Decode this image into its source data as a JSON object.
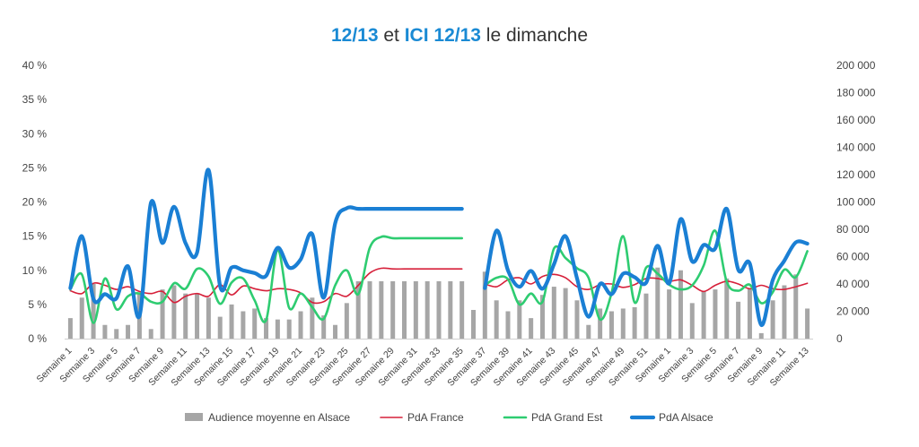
{
  "chart_data": {
    "type": "bar+line",
    "title": {
      "part1": "12/13",
      "part2": " et ",
      "part3": "ICI 12/13",
      "part4": " le dimanche"
    },
    "xlabel": "",
    "left_axis": {
      "ylim": [
        0,
        40
      ],
      "ticks": [
        "0 %",
        "5 %",
        "10 %",
        "15 %",
        "20 %",
        "25 %",
        "30 %",
        "35 %",
        "40 %"
      ]
    },
    "right_axis": {
      "ylim": [
        0,
        200000
      ],
      "ticks": [
        "0",
        "20 000",
        "40 000",
        "60 000",
        "80 000",
        "100 000",
        "120 000",
        "140 000",
        "160 000",
        "180 000",
        "200 000"
      ]
    },
    "categories_labeled": [
      "Semaine 1",
      "Semaine 3",
      "Semaine 5",
      "Semaine 7",
      "Semaine 9",
      "Semaine 11",
      "Semaine 13",
      "Semaine 15",
      "Semaine 17",
      "Semaine 19",
      "Semaine 21",
      "Semaine 23",
      "Semaine 25",
      "Semaine 27",
      "Semaine 29",
      "Semaine 31",
      "Semaine 33",
      "Semaine 35",
      "Semaine 37",
      "Semaine 39",
      "Semaine 41",
      "Semaine 43",
      "Semaine 45",
      "Semaine 47",
      "Semaine 49",
      "Semaine 51",
      "Semaine 1",
      "Semaine 3",
      "Semaine 5",
      "Semaine 7",
      "Semaine 9",
      "Semaine 11",
      "Semaine 13"
    ],
    "legend": [
      "Audience moyenne en Alsace",
      "PdA France",
      "PdA Grand Est",
      "PdA Alsace"
    ],
    "colors": {
      "audience": "#a6a6a6",
      "france": "#d6203a",
      "grand_est": "#2ecc71",
      "alsace": "#1a7fd4"
    },
    "series": [
      {
        "name": "Audience moyenne en Alsace",
        "axis": "right",
        "values": [
          15000,
          30000,
          40000,
          10000,
          7000,
          10000,
          33000,
          7000,
          36000,
          39000,
          33000,
          33000,
          30000,
          16000,
          25000,
          20000,
          22000,
          15000,
          14000,
          14000,
          20000,
          30000,
          17000,
          10000,
          26000,
          42000,
          42000,
          42000,
          42000,
          42000,
          42000,
          42000,
          42000,
          42000,
          42000,
          21000,
          49000,
          28000,
          20000,
          28000,
          15000,
          32000,
          38000,
          37000,
          28000,
          10000,
          22000,
          20000,
          22000,
          23000,
          33000,
          52000,
          36000,
          50000,
          26000,
          35000,
          36000,
          44000,
          27000,
          37000,
          4000,
          28000,
          39000,
          47000,
          22000
        ]
      },
      {
        "name": "PdA France",
        "axis": "left",
        "values": [
          7.0,
          6.6,
          8.1,
          7.8,
          7.2,
          7.6,
          6.9,
          6.6,
          6.9,
          5.3,
          6.2,
          6.6,
          6.2,
          7.9,
          6.4,
          7.7,
          7.3,
          7.0,
          7.3,
          7.2,
          6.7,
          5.3,
          5.4,
          6.6,
          6.2,
          7.8,
          9.6,
          10.3,
          10.2,
          10.2,
          10.2,
          10.2,
          10.2,
          10.2,
          10.2,
          null,
          8.0,
          7.6,
          8.6,
          8.9,
          8.0,
          9.1,
          9.4,
          8.9,
          7.6,
          7.2,
          7.9,
          8.0,
          7.5,
          7.9,
          8.8,
          8.8,
          8.4,
          8.6,
          7.8,
          6.9,
          7.8,
          8.4,
          8.0,
          7.3,
          7.8,
          7.3,
          7.2,
          7.6,
          8.1
        ]
      },
      {
        "name": "PdA Grand Est",
        "axis": "left",
        "values": [
          7.2,
          9.4,
          2.3,
          8.8,
          4.3,
          6.2,
          6.6,
          5.4,
          5.4,
          8.1,
          7.3,
          10.2,
          9.1,
          5.1,
          8.2,
          8.8,
          5.6,
          2.7,
          13.0,
          4.5,
          6.6,
          4.6,
          2.9,
          7.8,
          10.0,
          6.5,
          13.3,
          14.9,
          14.7,
          14.7,
          14.7,
          14.7,
          14.7,
          14.7,
          14.7,
          null,
          7.8,
          8.9,
          8.7,
          5.0,
          6.6,
          5.4,
          13.2,
          11.8,
          10.3,
          8.9,
          2.8,
          6.7,
          15.0,
          5.3,
          10.4,
          9.5,
          7.9,
          7.2,
          7.8,
          10.7,
          15.8,
          8.3,
          7.0,
          7.9,
          5.2,
          6.8,
          10.1,
          9.0,
          12.8
        ]
      },
      {
        "name": "PdA Alsace",
        "axis": "left",
        "values": [
          7.4,
          15.0,
          5.8,
          6.5,
          5.9,
          10.6,
          3.3,
          19.9,
          14.0,
          19.3,
          14.0,
          12.6,
          24.7,
          7.7,
          10.4,
          10.0,
          9.6,
          9.2,
          13.3,
          10.4,
          11.6,
          15.3,
          6.0,
          16.9,
          19.1,
          19.0,
          19.0,
          19.0,
          19.0,
          19.0,
          19.0,
          19.0,
          19.0,
          19.0,
          19.0,
          null,
          7.4,
          15.8,
          10.0,
          7.6,
          9.9,
          7.3,
          10.9,
          15.0,
          8.8,
          3.2,
          8.0,
          6.5,
          9.5,
          9.0,
          8.2,
          13.6,
          8.1,
          17.5,
          11.3,
          13.7,
          13.2,
          19.0,
          10.1,
          11.0,
          2.0,
          8.6,
          11.4,
          14.1,
          13.9
        ]
      }
    ]
  }
}
